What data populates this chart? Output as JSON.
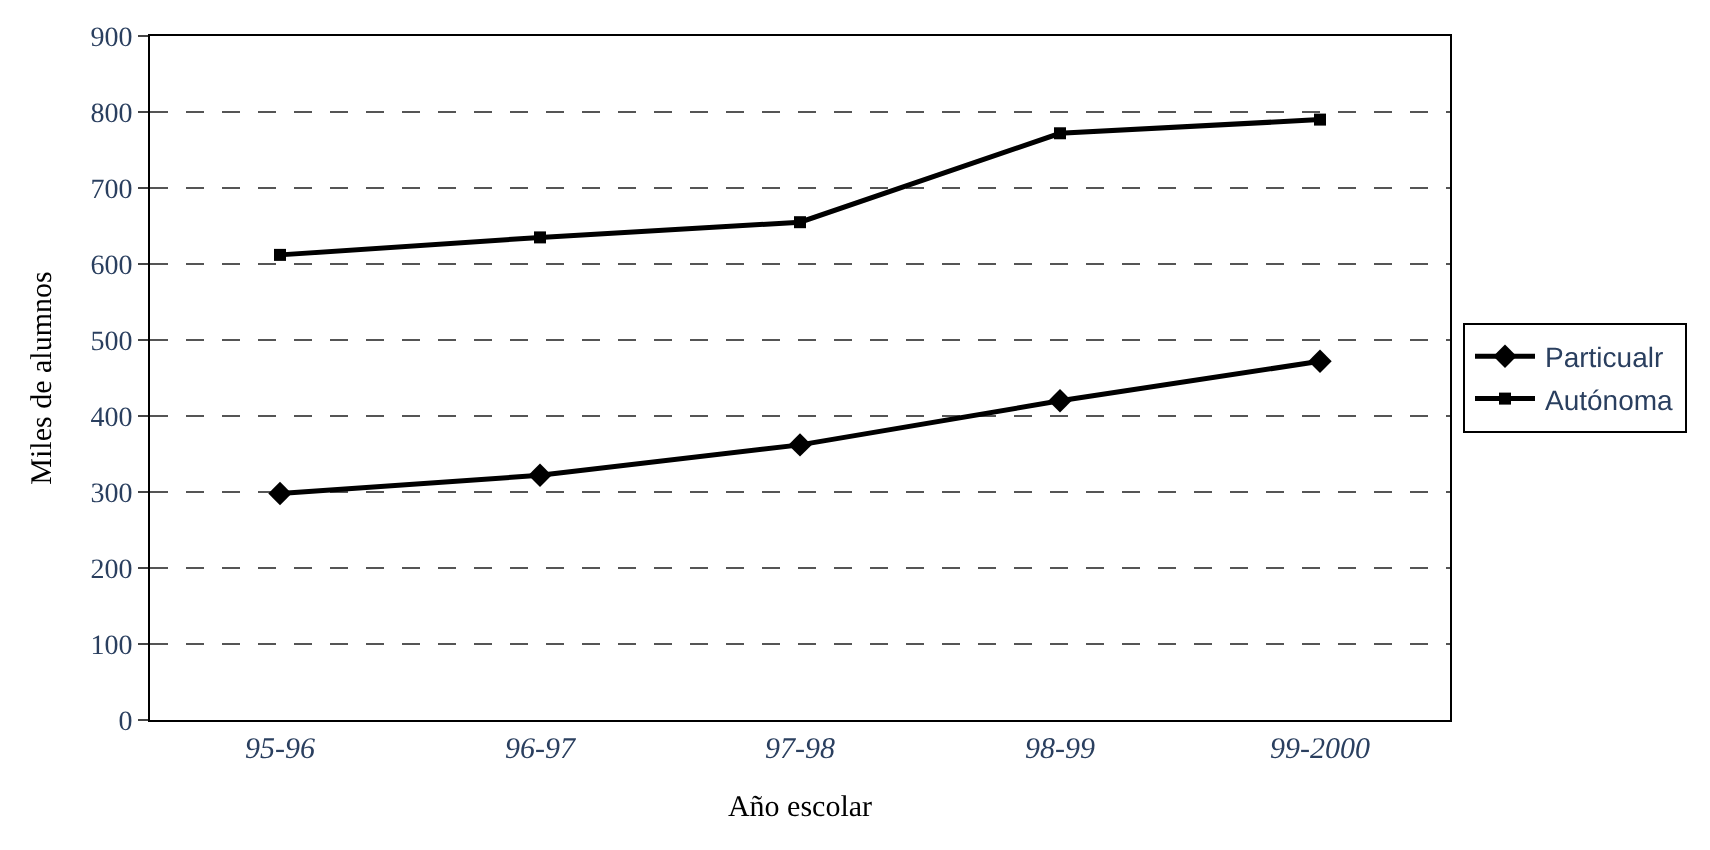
{
  "chart_data": {
    "type": "line",
    "xlabel": "Año escolar",
    "ylabel": "Miles de alumnos",
    "categories": [
      "95-96",
      "96-97",
      "97-98",
      "98-99",
      "99-2000"
    ],
    "series": [
      {
        "name": "Particualr",
        "color": "#000000",
        "values": [
          298,
          322,
          362,
          420,
          472
        ],
        "marker": "diamond"
      },
      {
        "name": "Autónoma",
        "color": "#000000",
        "values": [
          612,
          635,
          655,
          772,
          790
        ],
        "marker": "square"
      }
    ],
    "ylim": [
      0,
      900
    ],
    "yticks": [
      0,
      100,
      200,
      300,
      400,
      500,
      600,
      700,
      800,
      900
    ],
    "grid": "y",
    "legend": "right",
    "line_style": "solid"
  }
}
